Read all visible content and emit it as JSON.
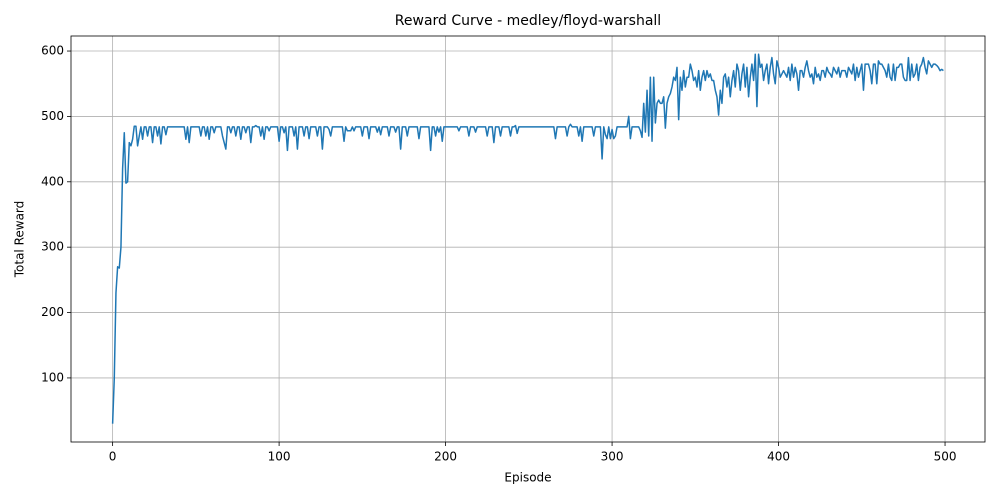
{
  "chart_data": {
    "type": "line",
    "title": "Reward Curve - medley/floyd-warshall",
    "x_label": "Episode",
    "y_label": "Total Reward",
    "xlim": [
      -25,
      524
    ],
    "ylim": [
      2,
      623
    ],
    "xticks": [
      0,
      100,
      200,
      300,
      400,
      500
    ],
    "yticks": [
      100,
      200,
      300,
      400,
      500,
      600
    ],
    "grid": true,
    "x": [
      0,
      1,
      2,
      3,
      4,
      5,
      6,
      7,
      8,
      9,
      10,
      11,
      12,
      13,
      14,
      15,
      16,
      17,
      18,
      19,
      20,
      21,
      22,
      23,
      24,
      25,
      26,
      27,
      28,
      29,
      30,
      31,
      32,
      33,
      34,
      35,
      36,
      37,
      38,
      39,
      40,
      41,
      42,
      43,
      44,
      45,
      46,
      47,
      48,
      49,
      50,
      51,
      52,
      53,
      54,
      55,
      56,
      57,
      58,
      59,
      60,
      61,
      62,
      63,
      64,
      65,
      66,
      67,
      68,
      69,
      70,
      71,
      72,
      73,
      74,
      75,
      76,
      77,
      78,
      79,
      80,
      81,
      82,
      83,
      84,
      85,
      86,
      87,
      88,
      89,
      90,
      91,
      92,
      93,
      94,
      95,
      96,
      97,
      98,
      99,
      100,
      101,
      102,
      103,
      104,
      105,
      106,
      107,
      108,
      109,
      110,
      111,
      112,
      113,
      114,
      115,
      116,
      117,
      118,
      119,
      120,
      121,
      122,
      123,
      124,
      125,
      126,
      127,
      128,
      129,
      130,
      131,
      132,
      133,
      134,
      135,
      136,
      137,
      138,
      139,
      140,
      141,
      142,
      143,
      144,
      145,
      146,
      147,
      148,
      149,
      150,
      151,
      152,
      153,
      154,
      155,
      156,
      157,
      158,
      159,
      160,
      161,
      162,
      163,
      164,
      165,
      166,
      167,
      168,
      169,
      170,
      171,
      172,
      173,
      174,
      175,
      176,
      177,
      178,
      179,
      180,
      181,
      182,
      183,
      184,
      185,
      186,
      187,
      188,
      189,
      190,
      191,
      192,
      193,
      194,
      195,
      196,
      197,
      198,
      199,
      200,
      201,
      202,
      203,
      204,
      205,
      206,
      207,
      208,
      209,
      210,
      211,
      212,
      213,
      214,
      215,
      216,
      217,
      218,
      219,
      220,
      221,
      222,
      223,
      224,
      225,
      226,
      227,
      228,
      229,
      230,
      231,
      232,
      233,
      234,
      235,
      236,
      237,
      238,
      239,
      240,
      241,
      242,
      243,
      244,
      245,
      246,
      247,
      248,
      249,
      250,
      251,
      252,
      253,
      254,
      255,
      256,
      257,
      258,
      259,
      260,
      261,
      262,
      263,
      264,
      265,
      266,
      267,
      268,
      269,
      270,
      271,
      272,
      273,
      274,
      275,
      276,
      277,
      278,
      279,
      280,
      281,
      282,
      283,
      284,
      285,
      286,
      287,
      288,
      289,
      290,
      291,
      292,
      293,
      294,
      295,
      296,
      297,
      298,
      299,
      300,
      301,
      302,
      303,
      304,
      305,
      306,
      307,
      308,
      309,
      310,
      311,
      312,
      313,
      314,
      315,
      316,
      317,
      318,
      319,
      320,
      321,
      322,
      323,
      324,
      325,
      326,
      327,
      328,
      329,
      330,
      331,
      332,
      333,
      334,
      335,
      336,
      337,
      338,
      339,
      340,
      341,
      342,
      343,
      344,
      345,
      346,
      347,
      348,
      349,
      350,
      351,
      352,
      353,
      354,
      355,
      356,
      357,
      358,
      359,
      360,
      361,
      362,
      363,
      364,
      365,
      366,
      367,
      368,
      369,
      370,
      371,
      372,
      373,
      374,
      375,
      376,
      377,
      378,
      379,
      380,
      381,
      382,
      383,
      384,
      385,
      386,
      387,
      388,
      389,
      390,
      391,
      392,
      393,
      394,
      395,
      396,
      397,
      398,
      399,
      400,
      401,
      402,
      403,
      404,
      405,
      406,
      407,
      408,
      409,
      410,
      411,
      412,
      413,
      414,
      415,
      416,
      417,
      418,
      419,
      420,
      421,
      422,
      423,
      424,
      425,
      426,
      427,
      428,
      429,
      430,
      431,
      432,
      433,
      434,
      435,
      436,
      437,
      438,
      439,
      440,
      441,
      442,
      443,
      444,
      445,
      446,
      447,
      448,
      449,
      450,
      451,
      452,
      453,
      454,
      455,
      456,
      457,
      458,
      459,
      460,
      461,
      462,
      463,
      464,
      465,
      466,
      467,
      468,
      469,
      470,
      471,
      472,
      473,
      474,
      475,
      476,
      477,
      478,
      479,
      480,
      481,
      482,
      483,
      484,
      485,
      486,
      487,
      488,
      489,
      490,
      491,
      492,
      493,
      494,
      495,
      496,
      497,
      498,
      499
    ],
    "series": [
      {
        "color": "#1f77b4",
        "values": [
          30,
          100,
          230,
          270,
          268,
          300,
          420,
          475,
          398,
          400,
          460,
          455,
          465,
          485,
          485,
          455,
          470,
          484,
          465,
          484,
          484,
          470,
          484,
          484,
          460,
          484,
          484,
          470,
          484,
          458,
          484,
          484,
          472,
          484,
          484,
          484,
          484,
          484,
          484,
          484,
          484,
          484,
          484,
          484,
          465,
          484,
          460,
          484,
          484,
          484,
          484,
          484,
          484,
          470,
          484,
          484,
          470,
          484,
          465,
          484,
          484,
          475,
          484,
          484,
          484,
          484,
          470,
          460,
          450,
          484,
          484,
          475,
          484,
          484,
          470,
          484,
          484,
          465,
          484,
          484,
          475,
          484,
          484,
          460,
          484,
          484,
          486,
          484,
          484,
          470,
          484,
          465,
          484,
          484,
          478,
          484,
          484,
          484,
          484,
          484,
          462,
          484,
          484,
          475,
          484,
          448,
          484,
          484,
          484,
          470,
          484,
          450,
          484,
          484,
          484,
          470,
          484,
          484,
          466,
          484,
          484,
          484,
          484,
          470,
          484,
          484,
          450,
          484,
          484,
          484,
          480,
          470,
          484,
          484,
          484,
          484,
          484,
          484,
          484,
          462,
          484,
          478,
          478,
          478,
          484,
          478,
          484,
          484,
          484,
          484,
          470,
          484,
          484,
          484,
          466,
          484,
          484,
          484,
          484,
          476,
          484,
          472,
          484,
          484,
          484,
          484,
          470,
          484,
          484,
          484,
          476,
          484,
          484,
          450,
          484,
          484,
          484,
          470,
          484,
          484,
          484,
          484,
          484,
          484,
          466,
          484,
          484,
          484,
          484,
          484,
          484,
          448,
          484,
          484,
          470,
          484,
          476,
          484,
          462,
          484,
          484,
          484,
          484,
          484,
          484,
          484,
          484,
          484,
          478,
          484,
          484,
          484,
          484,
          484,
          470,
          484,
          484,
          484,
          476,
          484,
          484,
          484,
          484,
          484,
          484,
          470,
          484,
          484,
          484,
          460,
          484,
          484,
          484,
          470,
          484,
          484,
          484,
          484,
          484,
          470,
          484,
          484,
          486,
          474,
          484,
          484,
          484,
          484,
          484,
          484,
          484,
          484,
          484,
          484,
          484,
          484,
          484,
          484,
          484,
          484,
          484,
          484,
          484,
          484,
          484,
          484,
          466,
          484,
          484,
          484,
          484,
          484,
          484,
          470,
          484,
          488,
          484,
          484,
          484,
          484,
          470,
          484,
          462,
          484,
          484,
          484,
          484,
          484,
          484,
          470,
          484,
          484,
          484,
          484,
          435,
          484,
          472,
          466,
          484,
          466,
          480,
          466,
          470,
          484,
          484,
          484,
          484,
          484,
          484,
          484,
          500,
          466,
          484,
          484,
          484,
          484,
          484,
          478,
          468,
          520,
          476,
          540,
          470,
          560,
          462,
          560,
          490,
          520,
          525,
          520,
          520,
          530,
          482,
          520,
          530,
          535,
          545,
          560,
          555,
          575,
          495,
          560,
          540,
          570,
          545,
          560,
          560,
          580,
          570,
          555,
          560,
          545,
          570,
          540,
          560,
          570,
          555,
          570,
          560,
          565,
          555,
          555,
          540,
          530,
          502,
          540,
          520,
          560,
          565,
          545,
          560,
          530,
          555,
          570,
          545,
          580,
          570,
          540,
          565,
          580,
          545,
          575,
          530,
          560,
          580,
          555,
          595,
          515,
          595,
          575,
          580,
          555,
          570,
          580,
          550,
          575,
          590,
          565,
          550,
          585,
          575,
          560,
          565,
          570,
          565,
          560,
          575,
          555,
          580,
          560,
          575,
          565,
          540,
          570,
          570,
          560,
          575,
          585,
          570,
          560,
          565,
          550,
          575,
          560,
          565,
          555,
          570,
          570,
          560,
          575,
          568,
          565,
          560,
          575,
          570,
          565,
          575,
          560,
          570,
          570,
          570,
          560,
          575,
          570,
          565,
          580,
          555,
          575,
          560,
          570,
          580,
          540,
          580,
          580,
          580,
          570,
          550,
          580,
          580,
          550,
          585,
          580,
          580,
          575,
          570,
          560,
          580,
          560,
          555,
          580,
          555,
          575,
          575,
          580,
          580,
          560,
          555,
          555,
          590,
          555,
          580,
          560,
          565,
          580,
          555,
          575,
          580,
          590,
          575,
          565,
          585,
          580,
          575,
          580,
          580,
          578,
          575,
          570,
          572,
          570
        ]
      }
    ]
  }
}
